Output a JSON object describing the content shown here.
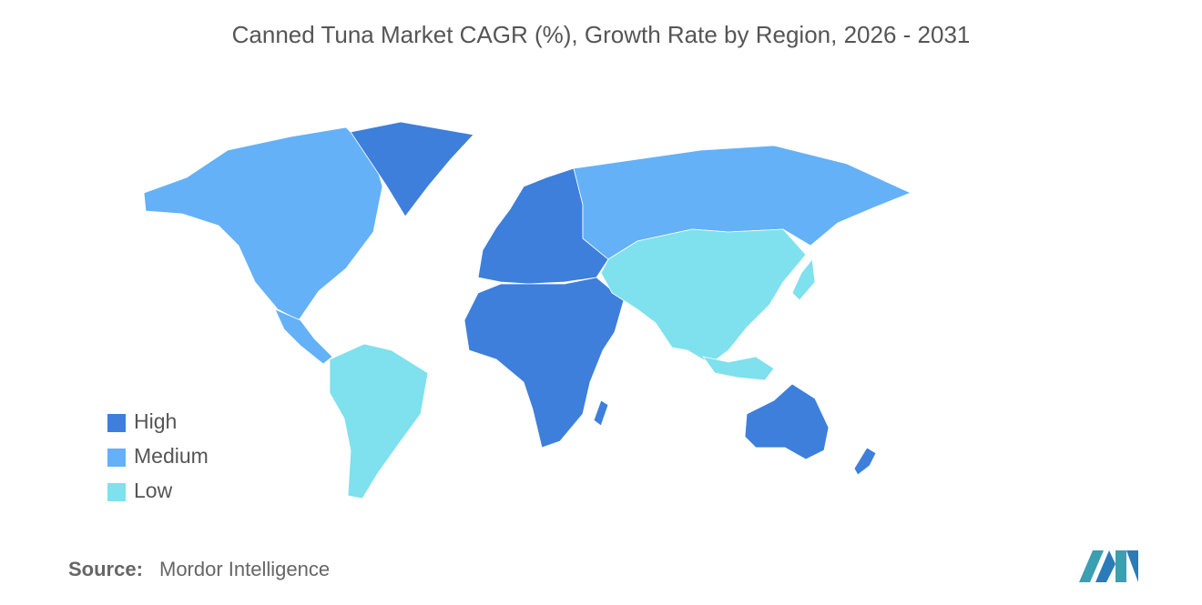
{
  "title": "Canned Tuna Market CAGR (%), Growth Rate by Region, 2026 - 2031",
  "legend": {
    "items": [
      {
        "label": "High",
        "color": "#3d7fdb"
      },
      {
        "label": "Medium",
        "color": "#64b1f7"
      },
      {
        "label": "Low",
        "color": "#7fe0ee"
      }
    ]
  },
  "source": {
    "label": "Source:",
    "text": "Mordor Intelligence"
  }
}
